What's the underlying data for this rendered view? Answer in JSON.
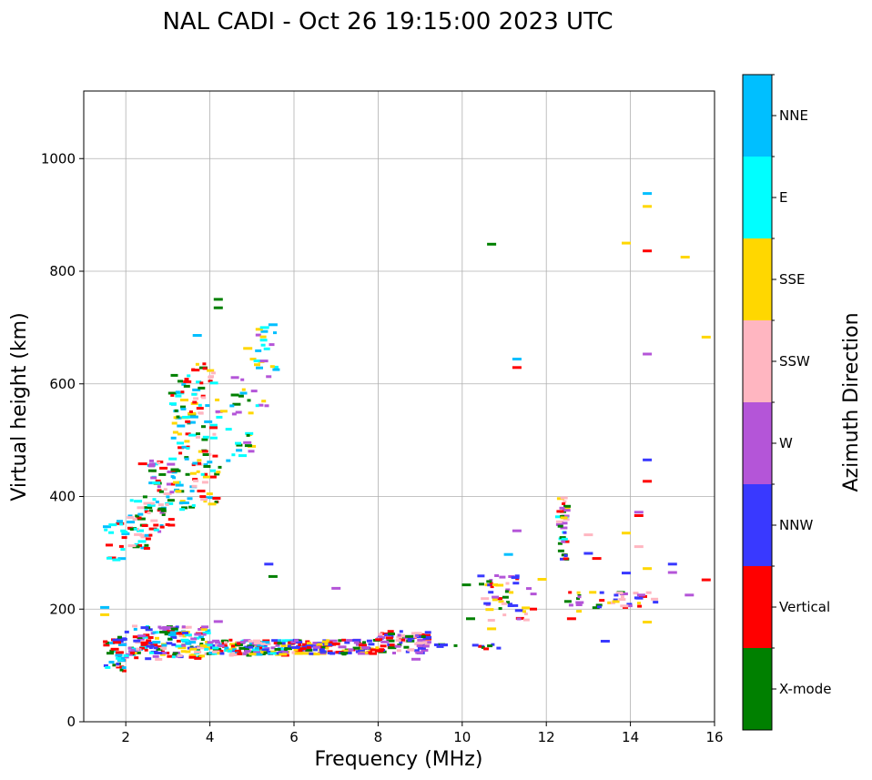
{
  "chart_data": {
    "type": "scatter",
    "title": "NAL CADI - Oct 26 19:15:00 2023 UTC",
    "xlabel": "Frequency (MHz)",
    "ylabel": "Virtual height (km)",
    "colorbar_label": "Azimuth Direction",
    "xlim": [
      1,
      16
    ],
    "ylim": [
      0,
      1120
    ],
    "xticks": [
      2,
      4,
      6,
      8,
      10,
      12,
      14,
      16
    ],
    "yticks": [
      0,
      200,
      400,
      600,
      800,
      1000
    ],
    "grid": true,
    "categories": [
      {
        "name": "X-mode",
        "color": "#008000"
      },
      {
        "name": "Vertical",
        "color": "#ff0000"
      },
      {
        "name": "NNW",
        "color": "#3939ff"
      },
      {
        "name": "W",
        "color": "#b455d8"
      },
      {
        "name": "SSW",
        "color": "#ffb6c1"
      },
      {
        "name": "SSE",
        "color": "#ffd700"
      },
      {
        "name": "E",
        "color": "#00ffff"
      },
      {
        "name": "NNE",
        "color": "#00bfff"
      }
    ],
    "clusters": [
      {
        "f": [
          1.5,
          2.0
        ],
        "h": [
          90,
          150
        ],
        "n": 40,
        "mix": [
          "Vertical",
          "NNE",
          "X-mode",
          "SSW",
          "NNW",
          "E"
        ]
      },
      {
        "f": [
          2.0,
          4.0
        ],
        "h": [
          110,
          170
        ],
        "n": 170,
        "mix": [
          "Vertical",
          "SSW",
          "NNE",
          "E",
          "NNW",
          "X-mode",
          "W",
          "SSE"
        ]
      },
      {
        "f": [
          4.0,
          6.0
        ],
        "h": [
          118,
          145
        ],
        "n": 150,
        "mix": [
          "X-mode",
          "Vertical",
          "NNW",
          "SSE",
          "E",
          "W",
          "SSW",
          "NNE"
        ]
      },
      {
        "f": [
          6.0,
          8.0
        ],
        "h": [
          120,
          145
        ],
        "n": 120,
        "mix": [
          "X-mode",
          "Vertical",
          "NNW",
          "W",
          "SSE"
        ]
      },
      {
        "f": [
          8.0,
          9.2
        ],
        "h": [
          122,
          162
        ],
        "n": 80,
        "mix": [
          "NNW",
          "W",
          "SSW",
          "Vertical",
          "X-mode"
        ]
      },
      {
        "f": [
          9.3,
          11.0
        ],
        "h": [
          128,
          140
        ],
        "n": 14,
        "mix": [
          "Vertical",
          "X-mode",
          "NNW"
        ]
      },
      {
        "f": [
          1.5,
          2.0
        ],
        "h": [
          285,
          360
        ],
        "n": 18,
        "mix": [
          "Vertical",
          "NNE",
          "E"
        ]
      },
      {
        "f": [
          2.1,
          2.6
        ],
        "h": [
          305,
          400
        ],
        "n": 40,
        "mix": [
          "NNE",
          "E",
          "Vertical",
          "X-mode",
          "SSW"
        ]
      },
      {
        "f": [
          2.6,
          3.1
        ],
        "h": [
          335,
          470
        ],
        "n": 55,
        "mix": [
          "NNE",
          "E",
          "Vertical",
          "X-mode",
          "SSW",
          "W"
        ]
      },
      {
        "f": [
          3.1,
          3.6
        ],
        "h": [
          370,
          620
        ],
        "n": 70,
        "mix": [
          "NNE",
          "E",
          "X-mode",
          "Vertical",
          "SSE"
        ]
      },
      {
        "f": [
          3.6,
          4.2
        ],
        "h": [
          380,
          640
        ],
        "n": 80,
        "mix": [
          "X-mode",
          "E",
          "NNE",
          "Vertical",
          "SSE",
          "SSW"
        ]
      },
      {
        "f": [
          4.2,
          5.0
        ],
        "h": [
          450,
          620
        ],
        "n": 30,
        "mix": [
          "W",
          "E",
          "NNE",
          "X-mode",
          "SSE"
        ]
      },
      {
        "f": [
          5.0,
          5.6
        ],
        "h": [
          560,
          700
        ],
        "n": 25,
        "mix": [
          "W",
          "NNE",
          "SSE",
          "E"
        ]
      },
      {
        "f": [
          10.4,
          11.8
        ],
        "h": [
          180,
          260
        ],
        "n": 50,
        "mix": [
          "Vertical",
          "SSW",
          "X-mode",
          "NNW",
          "W",
          "SSE"
        ]
      },
      {
        "f": [
          12.3,
          12.5
        ],
        "h": [
          285,
          400
        ],
        "n": 40,
        "mix": [
          "SSE",
          "SSW",
          "NNW",
          "W",
          "E",
          "X-mode",
          "Vertical"
        ]
      },
      {
        "f": [
          12.5,
          14.6
        ],
        "h": [
          195,
          230
        ],
        "n": 40,
        "mix": [
          "Vertical",
          "W",
          "SSW",
          "NNW",
          "X-mode",
          "SSE"
        ]
      }
    ],
    "isolated": [
      {
        "f": 10.7,
        "h": 848,
        "c": "X-mode"
      },
      {
        "f": 13.9,
        "h": 850,
        "c": "SSE"
      },
      {
        "f": 14.4,
        "h": 938,
        "c": "NNE"
      },
      {
        "f": 14.4,
        "h": 915,
        "c": "SSE"
      },
      {
        "f": 14.4,
        "h": 836,
        "c": "Vertical"
      },
      {
        "f": 15.3,
        "h": 825,
        "c": "SSE"
      },
      {
        "f": 15.8,
        "h": 683,
        "c": "SSE"
      },
      {
        "f": 14.4,
        "h": 653,
        "c": "W"
      },
      {
        "f": 14.4,
        "h": 465,
        "c": "NNW"
      },
      {
        "f": 14.4,
        "h": 427,
        "c": "Vertical"
      },
      {
        "f": 14.2,
        "h": 372,
        "c": "W"
      },
      {
        "f": 14.2,
        "h": 366,
        "c": "Vertical"
      },
      {
        "f": 14.2,
        "h": 311,
        "c": "SSW"
      },
      {
        "f": 14.4,
        "h": 272,
        "c": "SSE"
      },
      {
        "f": 13.9,
        "h": 264,
        "c": "NNW"
      },
      {
        "f": 15.0,
        "h": 280,
        "c": "NNW"
      },
      {
        "f": 15.0,
        "h": 265,
        "c": "W"
      },
      {
        "f": 15.8,
        "h": 252,
        "c": "Vertical"
      },
      {
        "f": 15.4,
        "h": 225,
        "c": "W"
      },
      {
        "f": 14.4,
        "h": 177,
        "c": "SSE"
      },
      {
        "f": 13.9,
        "h": 335,
        "c": "SSE"
      },
      {
        "f": 13.0,
        "h": 332,
        "c": "SSW"
      },
      {
        "f": 13.0,
        "h": 299,
        "c": "NNW"
      },
      {
        "f": 13.2,
        "h": 290,
        "c": "Vertical"
      },
      {
        "f": 13.4,
        "h": 143,
        "c": "NNW"
      },
      {
        "f": 11.3,
        "h": 644,
        "c": "NNE"
      },
      {
        "f": 11.3,
        "h": 629,
        "c": "Vertical"
      },
      {
        "f": 11.3,
        "h": 339,
        "c": "W"
      },
      {
        "f": 11.1,
        "h": 297,
        "c": "NNE"
      },
      {
        "f": 11.9,
        "h": 253,
        "c": "SSE"
      },
      {
        "f": 12.6,
        "h": 183,
        "c": "Vertical"
      },
      {
        "f": 5.4,
        "h": 280,
        "c": "NNW"
      },
      {
        "f": 5.5,
        "h": 258,
        "c": "X-mode"
      },
      {
        "f": 4.2,
        "h": 750,
        "c": "X-mode"
      },
      {
        "f": 4.2,
        "h": 735,
        "c": "X-mode"
      },
      {
        "f": 5.3,
        "h": 700,
        "c": "E"
      },
      {
        "f": 5.5,
        "h": 705,
        "c": "NNE"
      },
      {
        "f": 3.7,
        "h": 686,
        "c": "NNE"
      },
      {
        "f": 4.9,
        "h": 663,
        "c": "SSE"
      },
      {
        "f": 7.0,
        "h": 237,
        "c": "W"
      },
      {
        "f": 4.2,
        "h": 178,
        "c": "W"
      },
      {
        "f": 2.4,
        "h": 458,
        "c": "Vertical"
      },
      {
        "f": 1.5,
        "h": 203,
        "c": "NNE"
      },
      {
        "f": 1.5,
        "h": 190,
        "c": "SSE"
      },
      {
        "f": 10.1,
        "h": 243,
        "c": "X-mode"
      },
      {
        "f": 10.2,
        "h": 183,
        "c": "X-mode"
      },
      {
        "f": 10.7,
        "h": 165,
        "c": "SSE"
      },
      {
        "f": 8.9,
        "h": 111,
        "c": "W"
      }
    ]
  }
}
